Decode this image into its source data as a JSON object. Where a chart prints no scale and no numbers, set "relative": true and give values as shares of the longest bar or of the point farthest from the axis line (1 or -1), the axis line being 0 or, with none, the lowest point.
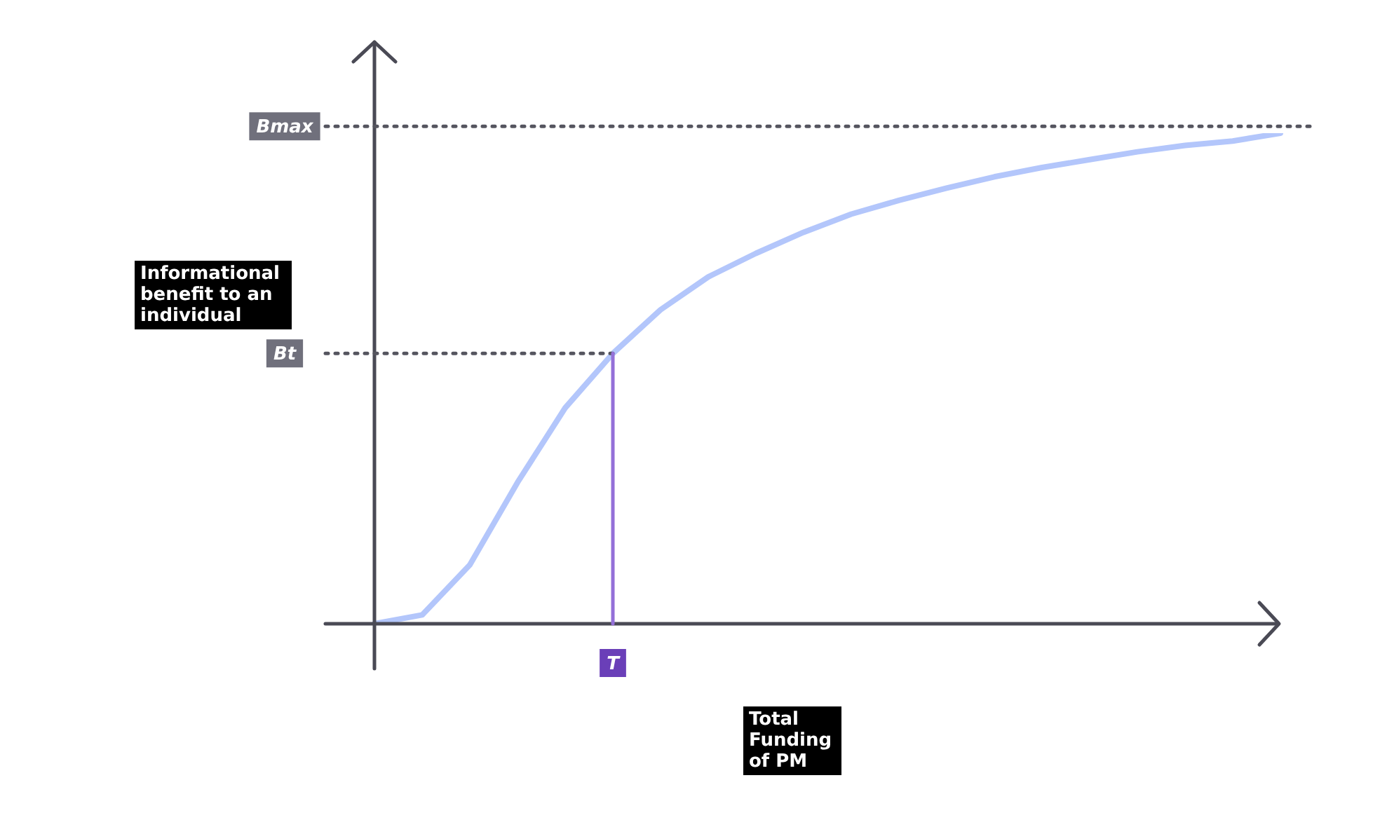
{
  "chart_data": {
    "type": "line",
    "relative": true,
    "xlabel": "Total Funding of PM",
    "ylabel": "Informational benefit to an individual",
    "categories": [
      null,
      null,
      null,
      null,
      null,
      null,
      null,
      null,
      null,
      null,
      null,
      null,
      null,
      null,
      null,
      null,
      null,
      null,
      null,
      null
    ],
    "series": [
      {
        "color": "#b3c6fb",
        "values": [
          0,
          0.018,
          0.12,
          0.288,
          0.44,
          0.551,
          0.64,
          0.707,
          0.755,
          0.798,
          0.835,
          0.863,
          0.888,
          0.911,
          0.93,
          0.946,
          0.962,
          0.975,
          0.984,
          1
        ]
      }
    ],
    "marker": "none",
    "line_style": "solid",
    "legend": false,
    "ref_lines": [
      {
        "axis": "y",
        "value": 1.014,
        "label": "Bmax",
        "color": "#55555f",
        "line_style": "dotted"
      },
      {
        "axis": "y",
        "value": 0.551,
        "label": "Bt",
        "color": "#55555f",
        "line_style": "dotted"
      }
    ],
    "annotations": [
      "T"
    ]
  }
}
